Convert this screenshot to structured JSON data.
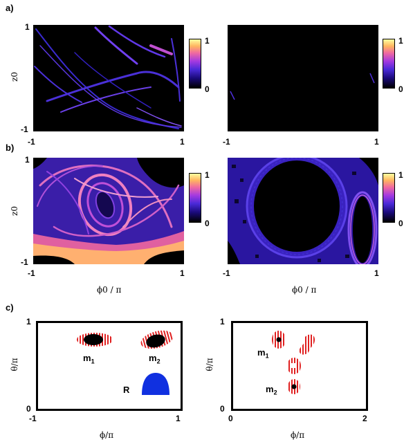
{
  "panels": {
    "a": "a)",
    "b": "b)",
    "c": "c)"
  },
  "row_ab": {
    "ylabel": "z0",
    "xlabel": "ϕ0 / π",
    "ytick_top": "1",
    "ytick_bottom": "-1",
    "xtick_left": "-1",
    "xtick_right": "1",
    "cbar_top": "1",
    "cbar_bottom": "0"
  },
  "row_c": {
    "left": {
      "ylabel": "θ/π",
      "xlabel": "ϕ/π",
      "ytick_top": "1",
      "ytick_bottom": "0",
      "xtick_left": "-1",
      "xtick_right": "1",
      "m1": "m",
      "m1_sub": "1",
      "m2": "m",
      "m2_sub": "2",
      "r": "R"
    },
    "right": {
      "ylabel": "θ/π",
      "xlabel": "ϕ/π",
      "ytick_top": "1",
      "ytick_bottom": "0",
      "xtick_left": "0",
      "xtick_right": "2",
      "m1": "m",
      "m1_sub": "1",
      "m2": "m",
      "m2_sub": "2"
    }
  },
  "colors": {
    "background": "#000000",
    "cluster_red": "#e02020",
    "region_blue": "#1030e0"
  }
}
